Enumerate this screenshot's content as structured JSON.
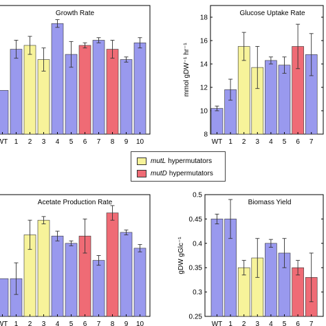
{
  "colors": {
    "blue": "#9999ee",
    "yellow": "#f7f39a",
    "red": "#ef6b75"
  },
  "legend": {
    "items": [
      {
        "gene": "mutL",
        "label": "hypermutators",
        "color": "#f7f39a"
      },
      {
        "gene": "mutD",
        "label": "hypermutators",
        "color": "#ef6b75"
      }
    ]
  },
  "chart_data": [
    {
      "type": "bar",
      "title": "Growth Rate",
      "xlabel": "",
      "ylabel": "",
      "ylim": [
        0.0,
        1.0
      ],
      "categories": [
        "WT",
        "1",
        "2",
        "3",
        "4",
        "5",
        "6",
        "7",
        "8",
        "9",
        "10"
      ],
      "values": [
        0.34,
        0.66,
        0.69,
        0.58,
        0.86,
        0.62,
        0.69,
        0.73,
        0.66,
        0.58,
        0.71
      ],
      "errors": [
        0.0,
        0.07,
        0.07,
        0.09,
        0.03,
        0.1,
        0.02,
        0.02,
        0.07,
        0.02,
        0.04
      ],
      "colors": [
        "blue",
        "blue",
        "yellow",
        "yellow",
        "blue",
        "blue",
        "red",
        "blue",
        "red",
        "blue",
        "blue"
      ]
    },
    {
      "type": "bar",
      "title": "Glucose Uptake Rate",
      "xlabel": "",
      "ylabel": "mmol gDW⁻¹ hr⁻¹",
      "ylim": [
        8,
        19
      ],
      "yticks": [
        8,
        10,
        12,
        14,
        16,
        18
      ],
      "categories": [
        "WT",
        "1",
        "2",
        "3",
        "4",
        "5",
        "6",
        "7"
      ],
      "values": [
        10.2,
        11.8,
        15.5,
        13.7,
        14.3,
        13.9,
        15.5,
        14.8
      ],
      "errors": [
        0.2,
        0.9,
        1.2,
        1.8,
        0.3,
        0.7,
        1.9,
        1.8
      ],
      "colors": [
        "blue",
        "blue",
        "yellow",
        "yellow",
        "blue",
        "blue",
        "red",
        "blue"
      ]
    },
    {
      "type": "bar",
      "title": "Acetate Production Rate",
      "xlabel": "",
      "ylabel": "",
      "ylim": [
        0.0,
        1.0
      ],
      "categories": [
        "WT",
        "1",
        "2",
        "3",
        "4",
        "5",
        "6",
        "7",
        "8",
        "9",
        "10"
      ],
      "values": [
        0.31,
        0.31,
        0.67,
        0.79,
        0.66,
        0.6,
        0.66,
        0.46,
        0.85,
        0.69,
        0.56
      ],
      "errors": [
        0.0,
        0.13,
        0.12,
        0.03,
        0.04,
        0.02,
        0.14,
        0.04,
        0.06,
        0.02,
        0.03
      ],
      "colors": [
        "blue",
        "blue",
        "yellow",
        "yellow",
        "blue",
        "blue",
        "red",
        "blue",
        "red",
        "blue",
        "blue"
      ]
    },
    {
      "type": "bar",
      "title": "Biomass Yield",
      "xlabel": "",
      "ylabel": "gDW gGlc⁻¹",
      "ylim": [
        0.25,
        0.5
      ],
      "yticks": [
        0.25,
        0.3,
        0.35,
        0.4,
        0.45,
        0.5
      ],
      "categories": [
        "WT",
        "1",
        "2",
        "3",
        "4",
        "5",
        "6",
        "7"
      ],
      "values": [
        0.45,
        0.45,
        0.35,
        0.37,
        0.4,
        0.38,
        0.35,
        0.33
      ],
      "errors": [
        0.01,
        0.04,
        0.015,
        0.04,
        0.008,
        0.03,
        0.015,
        0.05
      ],
      "colors": [
        "blue",
        "blue",
        "yellow",
        "yellow",
        "blue",
        "blue",
        "red",
        "red"
      ]
    }
  ]
}
